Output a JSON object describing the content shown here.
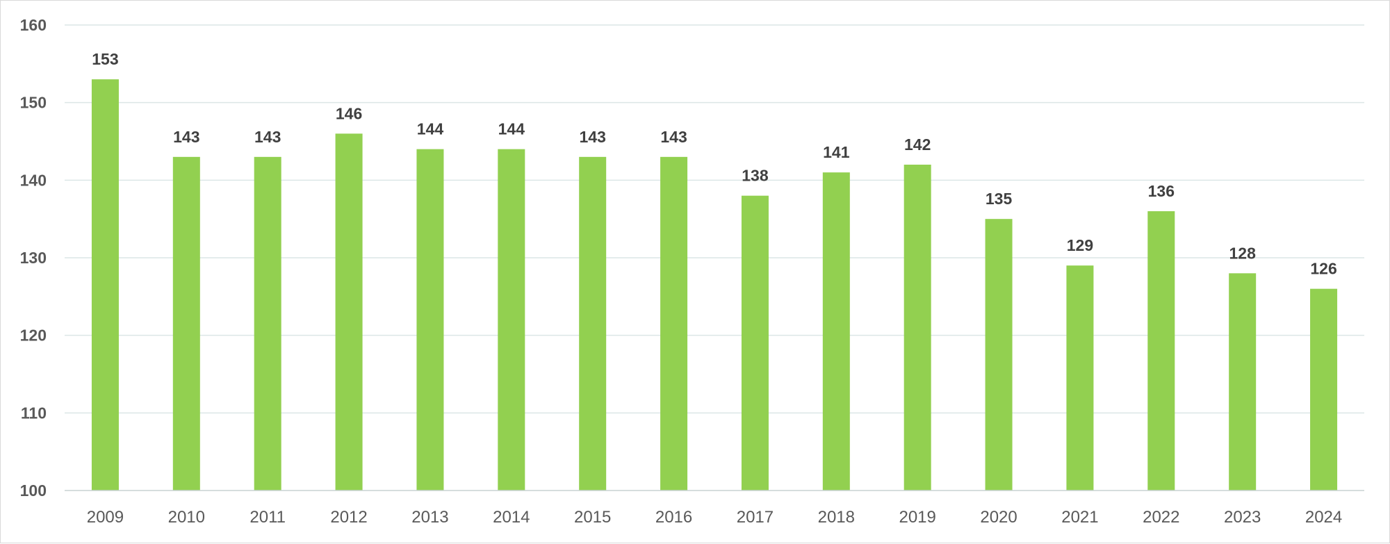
{
  "chart_data": {
    "type": "bar",
    "title": "",
    "xlabel": "",
    "ylabel": "",
    "categories": [
      "2009",
      "2010",
      "2011",
      "2012",
      "2013",
      "2014",
      "2015",
      "2016",
      "2017",
      "2018",
      "2019",
      "2020",
      "2021",
      "2022",
      "2023",
      "2024"
    ],
    "values": [
      153,
      143,
      143,
      146,
      144,
      144,
      143,
      143,
      138,
      141,
      142,
      135,
      129,
      136,
      128,
      126
    ],
    "ylim": [
      100,
      160
    ],
    "yticks": [
      100,
      110,
      120,
      130,
      140,
      150,
      160
    ],
    "bar_color": "#92d050",
    "grid": true,
    "legend": "none",
    "data_labels": true
  }
}
